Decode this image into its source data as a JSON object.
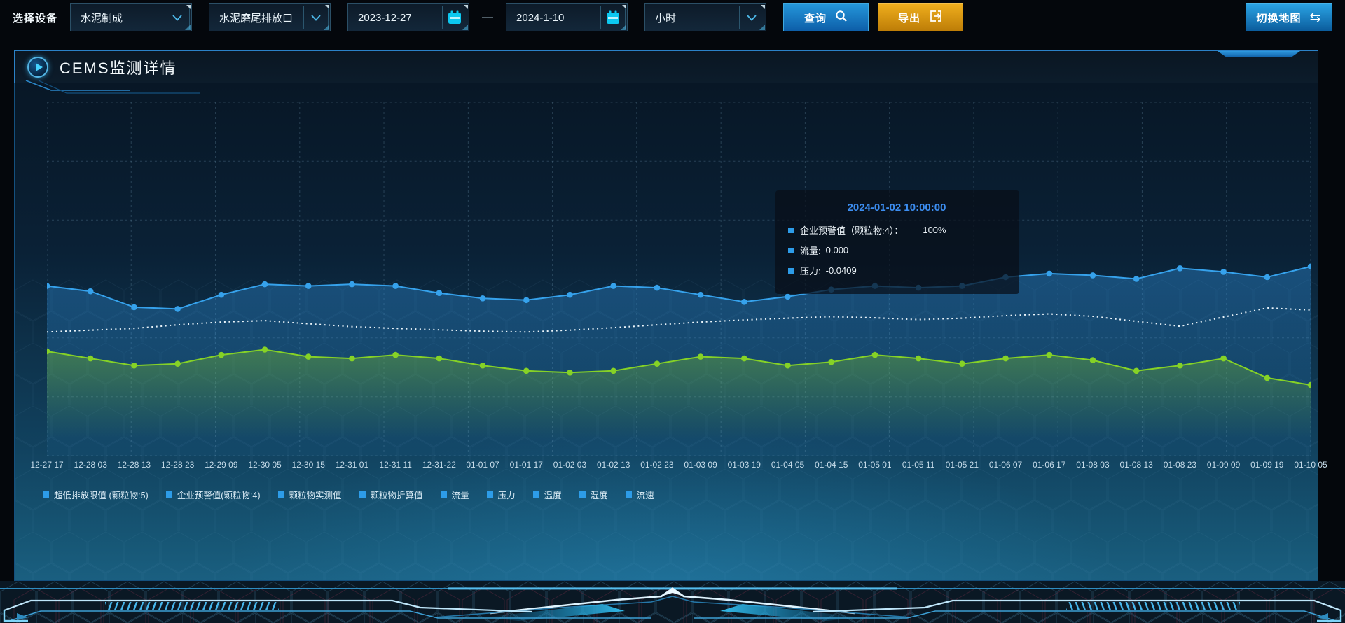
{
  "toolbar": {
    "device_label": "选择设备",
    "device_select": {
      "value": "水泥制成"
    },
    "outlet_select": {
      "value": "水泥磨尾排放口"
    },
    "date_start": "2023-12-27",
    "date_separator": "—",
    "date_end": "2024-1-10",
    "interval_select": {
      "value": "小时"
    },
    "query_label": "查询",
    "export_label": "导出",
    "switch_map_label": "切换地图"
  },
  "panel": {
    "title": "CEMS监测详情"
  },
  "tooltip": {
    "title": "2024-01-02 10:00:00",
    "title_color": "#3c8df0",
    "marker_color": "#2d9ce8",
    "rows": [
      {
        "label": "企业预警值（颗粒物:4）：",
        "value": "100%"
      },
      {
        "label": "流量:",
        "value": "0.000"
      },
      {
        "label": "压力:",
        "value": "-0.0409"
      }
    ]
  },
  "legend": {
    "marker_color": "#2d9ce8",
    "items": [
      "超低排放限值 (颗粒物:5)",
      "企业预警值(颗粒物:4)",
      "颗粒物实测值",
      "颗粒物折算值",
      "流量",
      "压力",
      "温度",
      "湿度",
      "流速"
    ]
  },
  "chart_data": {
    "type": "line",
    "title": "CEMS监测详情",
    "xlabel": "",
    "ylabel": "",
    "grid": true,
    "legend_position": "bottom",
    "ylim": [
      0,
      100
    ],
    "note": "no y-axis tick labels are visible; series values stored as percent of plot height from bottom",
    "x": [
      "12-27 17",
      "12-28 03",
      "12-28 13",
      "12-28 23",
      "12-29 09",
      "12-30 05",
      "12-30 15",
      "12-31 01",
      "12-31 11",
      "12-31-22",
      "01-01 07",
      "01-01 17",
      "01-02 03",
      "01-02 13",
      "01-02 23",
      "01-03 09",
      "01-03 19",
      "01-04 05",
      "01-04 15",
      "01-05 01",
      "01-05 11",
      "01-05 21",
      "01-06 07",
      "01-06 17",
      "01-08 03",
      "01-08 13",
      "01-08 23",
      "01-09 09",
      "01-09 19",
      "01-10 05"
    ],
    "series": [
      {
        "name": "流量",
        "color": "#36a2ec",
        "style": "solid",
        "points": true,
        "area": true,
        "values": [
          48,
          46.5,
          42,
          41.5,
          45.5,
          48.5,
          48,
          48.5,
          48,
          46,
          44.5,
          44,
          45.5,
          48,
          47.5,
          45.5,
          43.5,
          45,
          47,
          48,
          47.5,
          48,
          50.5,
          51.5,
          51,
          50,
          53,
          52,
          50.5,
          53.5
        ]
      },
      {
        "name": "企业预警值(颗粒物:4)",
        "color": "#ecf6fc",
        "style": "dotted",
        "points": false,
        "area": false,
        "values": [
          35,
          35.5,
          36,
          37,
          37.8,
          38.2,
          37.3,
          36.5,
          36,
          35.6,
          35.2,
          35,
          35.5,
          36.2,
          37,
          37.8,
          38.4,
          38.9,
          39.3,
          39,
          38.5,
          38.9,
          39.6,
          40.1,
          39.4,
          38,
          36.6,
          39.2,
          41.8,
          41.2
        ]
      },
      {
        "name": "压力",
        "color": "#86d226",
        "style": "solid",
        "points": true,
        "area": true,
        "values": [
          29.5,
          27.5,
          25.5,
          26,
          28.5,
          30,
          28,
          27.5,
          28.5,
          27.5,
          25.5,
          24,
          23.5,
          24,
          26,
          28,
          27.5,
          25.5,
          26.5,
          28.5,
          27.5,
          26,
          27.5,
          28.5,
          27,
          24,
          25.5,
          27.5,
          22,
          20
        ]
      }
    ]
  }
}
